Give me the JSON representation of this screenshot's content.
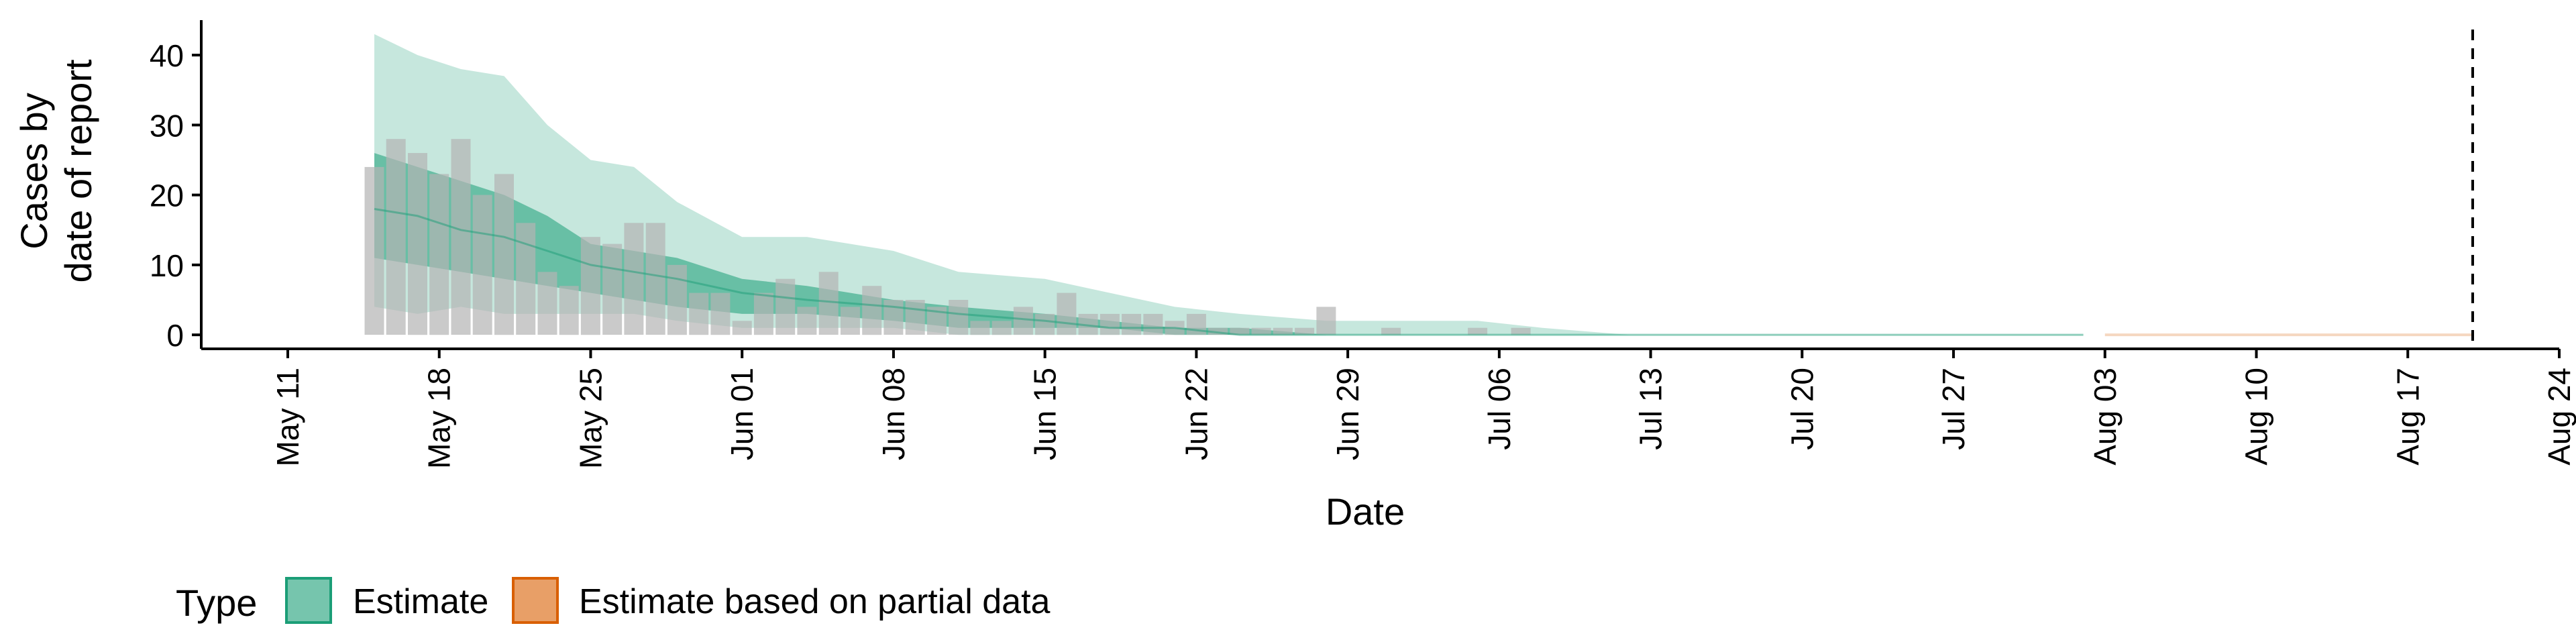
{
  "chart_data": {
    "type": "area",
    "title": "",
    "xlabel": "Date",
    "ylabel_lines": [
      "Cases by",
      "date of report"
    ],
    "ylim": [
      -2,
      45
    ],
    "yticks": [
      0,
      10,
      20,
      30,
      40
    ],
    "xlim": [
      "2020-05-07",
      "2020-08-24"
    ],
    "xticks": [
      {
        "date": "2020-05-11",
        "label": "May 11"
      },
      {
        "date": "2020-05-18",
        "label": "May 18"
      },
      {
        "date": "2020-05-25",
        "label": "May 25"
      },
      {
        "date": "2020-06-01",
        "label": "Jun 01"
      },
      {
        "date": "2020-06-08",
        "label": "Jun 08"
      },
      {
        "date": "2020-06-15",
        "label": "Jun 15"
      },
      {
        "date": "2020-06-22",
        "label": "Jun 22"
      },
      {
        "date": "2020-06-29",
        "label": "Jun 29"
      },
      {
        "date": "2020-07-06",
        "label": "Jul 06"
      },
      {
        "date": "2020-07-13",
        "label": "Jul 13"
      },
      {
        "date": "2020-07-20",
        "label": "Jul 20"
      },
      {
        "date": "2020-07-27",
        "label": "Jul 27"
      },
      {
        "date": "2020-08-03",
        "label": "Aug 03"
      },
      {
        "date": "2020-08-10",
        "label": "Aug 10"
      },
      {
        "date": "2020-08-17",
        "label": "Aug 17"
      },
      {
        "date": "2020-08-24",
        "label": "Aug 24"
      }
    ],
    "vline_date": "2020-08-20",
    "colors": {
      "bars": "#b3b3b3",
      "estimate": "#1b9e77",
      "partial": "#d95f02",
      "vline": "#000000"
    },
    "observed_cases": {
      "start_date": "2020-05-15",
      "values": [
        24,
        28,
        26,
        23,
        28,
        20,
        23,
        16,
        9,
        7,
        14,
        13,
        16,
        16,
        10,
        6,
        6,
        2,
        6,
        8,
        4,
        9,
        4,
        7,
        5,
        5,
        4,
        5,
        2,
        2,
        4,
        3,
        6,
        3,
        3,
        3,
        3,
        2,
        3,
        1,
        1,
        1,
        1,
        1,
        4,
        0,
        0,
        1,
        0,
        0,
        0,
        1,
        0,
        1
      ]
    },
    "estimate_bands": {
      "dates": [
        "2020-05-15",
        "2020-05-17",
        "2020-05-19",
        "2020-05-21",
        "2020-05-23",
        "2020-05-25",
        "2020-05-27",
        "2020-05-29",
        "2020-06-01",
        "2020-06-04",
        "2020-06-08",
        "2020-06-11",
        "2020-06-15",
        "2020-06-18",
        "2020-06-21",
        "2020-06-24",
        "2020-06-28",
        "2020-07-01",
        "2020-07-05",
        "2020-07-08",
        "2020-07-12",
        "2020-08-02"
      ],
      "lower90": [
        4,
        3,
        4,
        3,
        3,
        3,
        3,
        2,
        1,
        1,
        1,
        0,
        0,
        0,
        0,
        0,
        0,
        0,
        0,
        0,
        0,
        0
      ],
      "upper90": [
        43,
        40,
        38,
        37,
        30,
        25,
        24,
        19,
        14,
        14,
        12,
        9,
        8,
        6,
        4,
        3,
        2,
        2,
        2,
        1,
        0,
        0
      ],
      "lower50": [
        11,
        10,
        9,
        8,
        7,
        6,
        5,
        4,
        3,
        3,
        2,
        1,
        1,
        1,
        0,
        0,
        0,
        0,
        0,
        0,
        0,
        0
      ],
      "upper50": [
        26,
        24,
        22,
        20,
        17,
        13,
        12,
        11,
        8,
        7,
        5,
        4,
        3,
        2,
        1,
        1,
        0,
        0,
        0,
        0,
        0,
        0
      ],
      "median": [
        18,
        17,
        15,
        14,
        12,
        10,
        9,
        8,
        6,
        5,
        4,
        3,
        2,
        1,
        1,
        0,
        0,
        0,
        0,
        0,
        0,
        0
      ]
    },
    "partial_estimate": {
      "dates": [
        "2020-08-03",
        "2020-08-20"
      ],
      "lower90": [
        0,
        0
      ],
      "upper90": [
        0,
        0
      ]
    },
    "legend": {
      "title": "Type",
      "position": "bottom-left",
      "items": [
        {
          "label": "Estimate",
          "color": "#1b9e77"
        },
        {
          "label": "Estimate based on partial data",
          "color": "#d95f02"
        }
      ]
    }
  }
}
